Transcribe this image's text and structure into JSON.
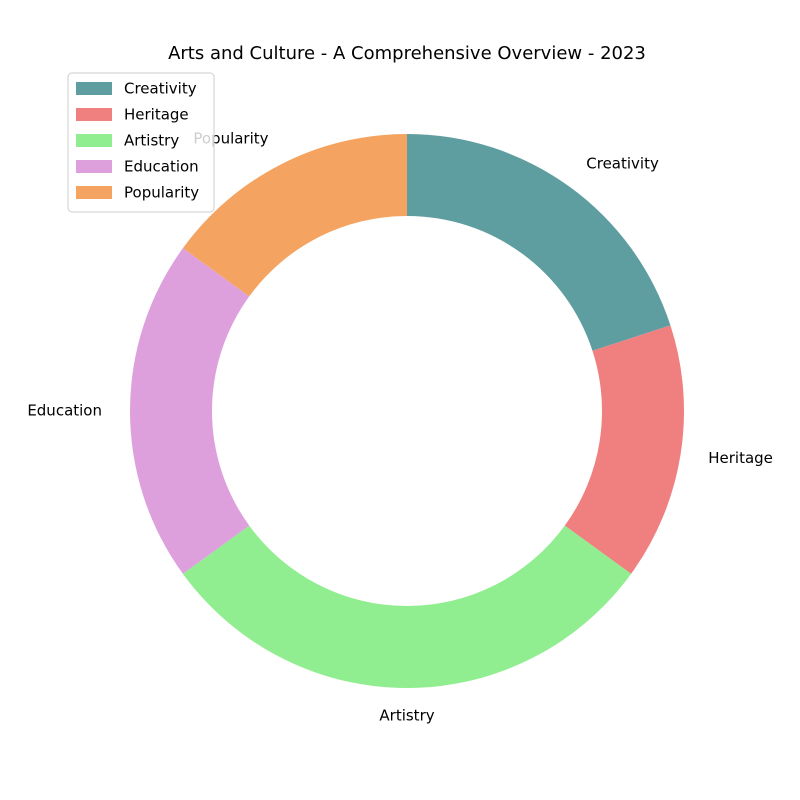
{
  "chart_data": {
    "type": "pie",
    "variant": "donut",
    "title": "Arts and Culture - A Comprehensive Overview - 2023",
    "categories": [
      "Creativity",
      "Heritage",
      "Artistry",
      "Education",
      "Popularity"
    ],
    "values": [
      20,
      15,
      30,
      20,
      15
    ],
    "colors": [
      "#5f9ea0",
      "#f08080",
      "#90ee90",
      "#dda0dd",
      "#f4a460"
    ],
    "start_angle_deg": 90,
    "direction": "clockwise",
    "legend": {
      "position": "top-left",
      "entries": [
        "Creativity",
        "Heritage",
        "Artistry",
        "Education",
        "Popularity"
      ]
    }
  }
}
